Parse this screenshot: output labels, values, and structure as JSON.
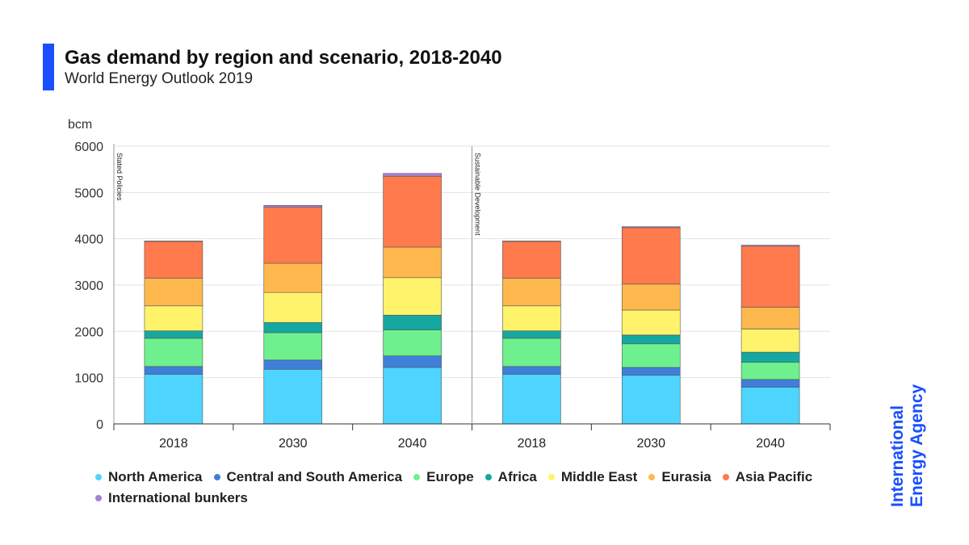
{
  "header": {
    "title": "Gas demand by region and scenario, 2018-2040",
    "subtitle": "World Energy Outlook 2019"
  },
  "brand": {
    "logo_line1": "International",
    "logo_line2": "Energy Agency",
    "accent_color": "#1a4fff"
  },
  "chart_data": {
    "type": "bar",
    "stacked": true,
    "ylabel": "bcm",
    "ylim": [
      0,
      6000
    ],
    "yticks": [
      0,
      1000,
      2000,
      3000,
      4000,
      5000,
      6000
    ],
    "grid": true,
    "legend_position": "bottom",
    "categories": [
      "2018",
      "2030",
      "2040",
      "2018",
      "2030",
      "2040"
    ],
    "groups": [
      {
        "label": "Stated Policies",
        "start_index": 0
      },
      {
        "label": "Sustainable Development",
        "start_index": 3
      }
    ],
    "series": [
      {
        "name": "North America",
        "color": "#4dd4ff",
        "values": [
          1070,
          1180,
          1220,
          1070,
          1050,
          790
        ]
      },
      {
        "name": "Central and South America",
        "color": "#3f7fd9",
        "values": [
          170,
          200,
          250,
          170,
          170,
          170
        ]
      },
      {
        "name": "Europe",
        "color": "#6ef08e",
        "values": [
          610,
          590,
          560,
          610,
          510,
          370
        ]
      },
      {
        "name": "Africa",
        "color": "#15a8a0",
        "values": [
          160,
          220,
          320,
          160,
          190,
          220
        ]
      },
      {
        "name": "Middle East",
        "color": "#fff36b",
        "values": [
          540,
          650,
          810,
          540,
          540,
          500
        ]
      },
      {
        "name": "Eurasia",
        "color": "#ffb84d",
        "values": [
          600,
          630,
          660,
          600,
          560,
          470
        ]
      },
      {
        "name": "Asia Pacific",
        "color": "#ff7a4d",
        "values": [
          790,
          1210,
          1530,
          790,
          1220,
          1320
        ]
      },
      {
        "name": "International bunkers",
        "color": "#a97fd9",
        "values": [
          10,
          40,
          60,
          10,
          20,
          20
        ]
      }
    ]
  }
}
